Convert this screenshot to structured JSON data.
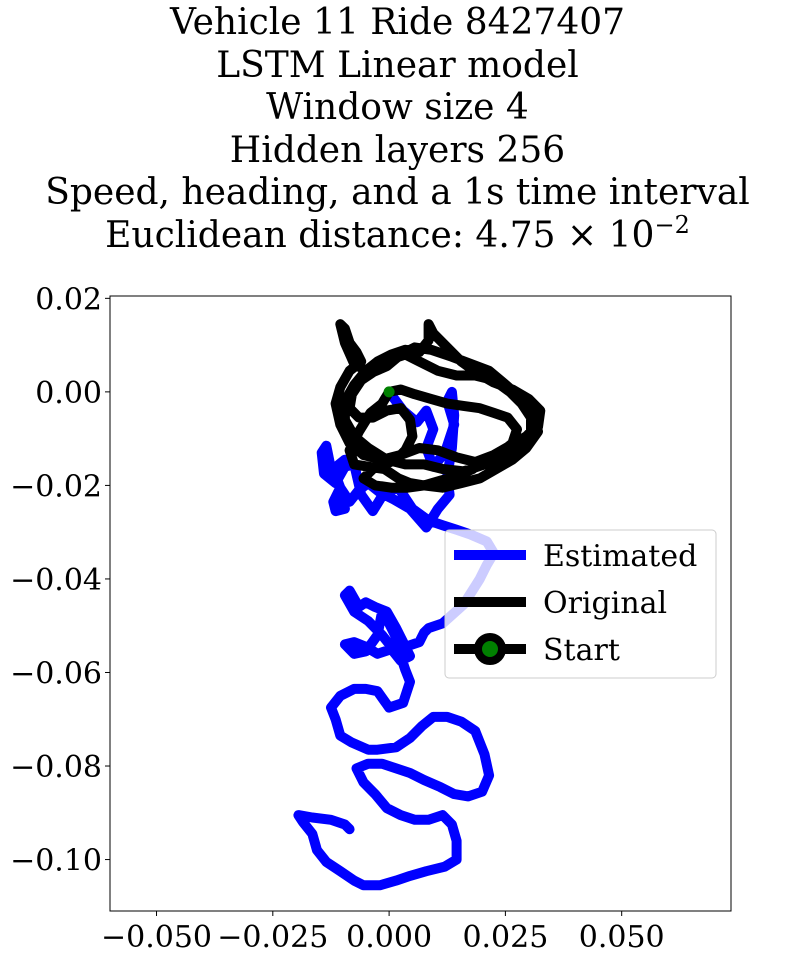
{
  "chart_data": {
    "type": "line",
    "title_lines": [
      "Vehicle 11 Ride 8427407",
      "LSTM Linear model",
      "Window size 4",
      "Hidden layers 256",
      "Speed, heading, and a 1s time interval"
    ],
    "title_distance": {
      "prefix": "Euclidean distance: ",
      "mantissa": "4.75",
      "times": "×",
      "base": "10",
      "exponent": "−2"
    },
    "xlim": [
      -0.06,
      0.0735
    ],
    "ylim": [
      -0.111,
      0.0205
    ],
    "x_ticks": [
      -0.05,
      -0.025,
      0.0,
      0.025,
      0.05
    ],
    "x_tick_labels": [
      "−0.050",
      "−0.025",
      "0.000",
      "0.025",
      "0.050"
    ],
    "y_ticks": [
      0.02,
      0.0,
      -0.02,
      -0.04,
      -0.06,
      -0.08,
      -0.1
    ],
    "y_tick_labels": [
      "0.02",
      "0.00",
      "−0.02",
      "−0.04",
      "−0.06",
      "−0.08",
      "−0.10"
    ],
    "grid": false,
    "legend": {
      "position": "center-right",
      "entries": [
        {
          "label": "Estimated",
          "color": "#0000ff"
        },
        {
          "label": "Original",
          "color": "#000000"
        },
        {
          "label": "Start",
          "color": "#000000",
          "marker_color": "#008000"
        }
      ]
    },
    "series": [
      {
        "name": "Estimated",
        "color": "#0000ff",
        "points": [
          [
            0.0,
            0.0
          ],
          [
            0.003,
            -0.004
          ],
          [
            0.006,
            -0.0065
          ],
          [
            0.008,
            -0.004
          ],
          [
            0.0095,
            -0.008
          ],
          [
            0.008,
            -0.012
          ],
          [
            0.0095,
            -0.016
          ],
          [
            0.012,
            -0.013
          ],
          [
            0.014,
            -0.007
          ],
          [
            0.0125,
            -0.002
          ],
          [
            0.0135,
            0.0
          ],
          [
            0.014,
            -0.005
          ],
          [
            0.0135,
            -0.012
          ],
          [
            0.0125,
            -0.018
          ],
          [
            0.013,
            -0.022
          ],
          [
            0.0105,
            -0.025
          ],
          [
            0.008,
            -0.029
          ],
          [
            0.0045,
            -0.025
          ],
          [
            0.001,
            -0.023
          ],
          [
            -0.002,
            -0.0215
          ],
          [
            -0.0045,
            -0.0195
          ],
          [
            -0.0065,
            -0.021
          ],
          [
            -0.0085,
            -0.0235
          ],
          [
            -0.0105,
            -0.0205
          ],
          [
            -0.012,
            -0.0235
          ],
          [
            -0.0115,
            -0.0255
          ],
          [
            -0.0095,
            -0.025
          ],
          [
            -0.0105,
            -0.0205
          ],
          [
            -0.012,
            -0.0165
          ],
          [
            -0.0095,
            -0.0145
          ],
          [
            -0.0105,
            -0.0175
          ],
          [
            -0.0125,
            -0.0165
          ],
          [
            -0.0135,
            -0.0115
          ],
          [
            -0.0145,
            -0.013
          ],
          [
            -0.014,
            -0.0175
          ],
          [
            -0.0115,
            -0.0195
          ],
          [
            -0.0095,
            -0.016
          ],
          [
            -0.0075,
            -0.0155
          ],
          [
            -0.006,
            -0.022
          ],
          [
            -0.0035,
            -0.0255
          ],
          [
            -0.001,
            -0.0215
          ],
          [
            0.002,
            -0.0205
          ],
          [
            0.005,
            -0.025
          ],
          [
            0.0085,
            -0.0275
          ],
          [
            0.0115,
            -0.0285
          ],
          [
            0.0145,
            -0.0295
          ],
          [
            0.0175,
            -0.0305
          ],
          [
            0.021,
            -0.032
          ],
          [
            0.0225,
            -0.0345
          ],
          [
            0.021,
            -0.037
          ],
          [
            0.0195,
            -0.04
          ],
          [
            0.016,
            -0.0455
          ],
          [
            0.0115,
            -0.0495
          ],
          [
            0.0085,
            -0.0505
          ],
          [
            0.0075,
            -0.0515
          ],
          [
            0.0065,
            -0.0535
          ],
          [
            0.0035,
            -0.0545
          ],
          [
            0.0015,
            -0.0525
          ],
          [
            0.0,
            -0.0495
          ],
          [
            -0.0015,
            -0.047
          ],
          [
            -0.0025,
            -0.052
          ],
          [
            -0.005,
            -0.0555
          ],
          [
            -0.0075,
            -0.056
          ],
          [
            -0.0095,
            -0.054
          ],
          [
            -0.0075,
            -0.0535
          ],
          [
            -0.005,
            -0.0545
          ],
          [
            -0.0025,
            -0.056
          ],
          [
            0.0005,
            -0.055
          ],
          [
            0.0025,
            -0.0575
          ],
          [
            0.0045,
            -0.0565
          ],
          [
            0.003,
            -0.0535
          ],
          [
            0.0015,
            -0.0505
          ],
          [
            -0.0005,
            -0.047
          ],
          [
            -0.003,
            -0.046
          ],
          [
            -0.005,
            -0.045
          ],
          [
            -0.0065,
            -0.046
          ],
          [
            -0.0085,
            -0.0425
          ],
          [
            -0.0095,
            -0.0435
          ],
          [
            -0.0075,
            -0.047
          ],
          [
            -0.0045,
            -0.049
          ],
          [
            -0.0015,
            -0.052
          ],
          [
            0.0005,
            -0.0545
          ],
          [
            0.0025,
            -0.0565
          ],
          [
            0.0035,
            -0.0595
          ],
          [
            0.0045,
            -0.062
          ],
          [
            0.003,
            -0.0665
          ],
          [
            0.0,
            -0.0675
          ],
          [
            -0.0025,
            -0.064
          ],
          [
            -0.005,
            -0.0635
          ],
          [
            -0.0075,
            -0.0635
          ],
          [
            -0.0105,
            -0.065
          ],
          [
            -0.0125,
            -0.0675
          ],
          [
            -0.0115,
            -0.07
          ],
          [
            -0.0105,
            -0.0735
          ],
          [
            -0.008,
            -0.075
          ],
          [
            -0.0045,
            -0.0765
          ],
          [
            -0.0025,
            -0.0765
          ],
          [
            0.0015,
            -0.076
          ],
          [
            0.0045,
            -0.074
          ],
          [
            0.007,
            -0.0715
          ],
          [
            0.0095,
            -0.0695
          ],
          [
            0.0125,
            -0.0695
          ],
          [
            0.0155,
            -0.0705
          ],
          [
            0.0185,
            -0.0725
          ],
          [
            0.0205,
            -0.0775
          ],
          [
            0.0215,
            -0.082
          ],
          [
            0.02,
            -0.0855
          ],
          [
            0.017,
            -0.0865
          ],
          [
            0.014,
            -0.086
          ],
          [
            0.011,
            -0.0845
          ],
          [
            0.0075,
            -0.083
          ],
          [
            0.0045,
            -0.0815
          ],
          [
            0.0015,
            -0.0805
          ],
          [
            -0.0015,
            -0.0795
          ],
          [
            -0.0045,
            -0.0795
          ],
          [
            -0.007,
            -0.0805
          ],
          [
            -0.0055,
            -0.0835
          ],
          [
            -0.003,
            -0.086
          ],
          [
            -0.0005,
            -0.089
          ],
          [
            0.0025,
            -0.0905
          ],
          [
            0.0055,
            -0.0915
          ],
          [
            0.0085,
            -0.0915
          ],
          [
            0.0115,
            -0.0905
          ],
          [
            0.0135,
            -0.0925
          ],
          [
            0.0145,
            -0.096
          ],
          [
            0.0145,
            -0.1
          ],
          [
            0.012,
            -0.1015
          ],
          [
            0.008,
            -0.1025
          ],
          [
            0.0045,
            -0.1035
          ],
          [
            0.0015,
            -0.1045
          ],
          [
            -0.002,
            -0.1055
          ],
          [
            -0.0055,
            -0.1055
          ],
          [
            -0.0075,
            -0.1045
          ],
          [
            -0.0105,
            -0.1025
          ],
          [
            -0.0135,
            -0.1005
          ],
          [
            -0.0155,
            -0.098
          ],
          [
            -0.0165,
            -0.0945
          ],
          [
            -0.0185,
            -0.092
          ],
          [
            -0.0195,
            -0.0905
          ],
          [
            -0.0165,
            -0.091
          ],
          [
            -0.0125,
            -0.0915
          ],
          [
            -0.0095,
            -0.0925
          ],
          [
            -0.0085,
            -0.0935
          ]
        ]
      },
      {
        "name": "Original",
        "color": "#000000",
        "points": [
          [
            0.0,
            0.0
          ],
          [
            -0.0015,
            -0.0025
          ],
          [
            -0.004,
            -0.0045
          ],
          [
            -0.0065,
            -0.0085
          ],
          [
            -0.0085,
            -0.0125
          ],
          [
            -0.0075,
            -0.0155
          ],
          [
            -0.0045,
            -0.016
          ],
          [
            -0.001,
            -0.0165
          ],
          [
            0.002,
            -0.0185
          ],
          [
            0.0045,
            -0.0195
          ],
          [
            0.0075,
            -0.02
          ],
          [
            0.0115,
            -0.0205
          ],
          [
            0.0155,
            -0.0195
          ],
          [
            0.0195,
            -0.0185
          ],
          [
            0.023,
            -0.0165
          ],
          [
            0.0265,
            -0.0145
          ],
          [
            0.0295,
            -0.012
          ],
          [
            0.032,
            -0.0085
          ],
          [
            0.031,
            -0.0045
          ],
          [
            0.028,
            -0.001
          ],
          [
            0.0245,
            0.002
          ],
          [
            0.0215,
            0.0045
          ],
          [
            0.0175,
            0.006
          ],
          [
            0.0135,
            0.0075
          ],
          [
            0.009,
            0.009
          ],
          [
            0.0055,
            0.0095
          ],
          [
            0.0025,
            0.008
          ],
          [
            -0.0005,
            0.0055
          ],
          [
            -0.004,
            0.004
          ],
          [
            -0.0075,
            0.006
          ],
          [
            -0.0095,
            0.0105
          ],
          [
            -0.0105,
            0.0145
          ],
          [
            -0.0095,
            0.0135
          ],
          [
            -0.0085,
            0.0105
          ],
          [
            -0.007,
            0.0085
          ],
          [
            -0.006,
            0.0065
          ],
          [
            -0.0085,
            0.0045
          ],
          [
            -0.0105,
            0.001
          ],
          [
            -0.0115,
            -0.0025
          ],
          [
            -0.0105,
            -0.007
          ],
          [
            -0.0085,
            -0.011
          ],
          [
            -0.0055,
            -0.0135
          ],
          [
            -0.0015,
            -0.0145
          ],
          [
            0.0025,
            -0.0135
          ],
          [
            0.0065,
            -0.012
          ],
          [
            0.0105,
            -0.0125
          ],
          [
            0.0145,
            -0.014
          ],
          [
            0.0185,
            -0.015
          ],
          [
            0.0225,
            -0.0135
          ],
          [
            0.026,
            -0.0115
          ],
          [
            0.0295,
            -0.0095
          ],
          [
            0.032,
            -0.0075
          ],
          [
            0.0325,
            -0.004
          ],
          [
            0.03,
            -0.0015
          ],
          [
            0.0265,
            0.0005
          ],
          [
            0.0225,
            0.002
          ],
          [
            0.019,
            0.004
          ],
          [
            0.0155,
            0.0065
          ],
          [
            0.0125,
            0.0095
          ],
          [
            0.0095,
            0.0125
          ],
          [
            0.0085,
            0.0145
          ],
          [
            0.0085,
            0.011
          ],
          [
            0.0065,
            0.0085
          ],
          [
            0.0035,
            0.009
          ],
          [
            0.0005,
            0.008
          ],
          [
            -0.0025,
            0.0065
          ],
          [
            -0.005,
            0.0045
          ],
          [
            -0.0075,
            0.0015
          ],
          [
            -0.0095,
            -0.002
          ],
          [
            -0.0095,
            -0.006
          ],
          [
            -0.0075,
            -0.0095
          ],
          [
            -0.0045,
            -0.012
          ],
          [
            -0.0005,
            -0.0145
          ],
          [
            0.0035,
            -0.0155
          ],
          [
            0.0075,
            -0.0155
          ],
          [
            0.0115,
            -0.0165
          ],
          [
            0.016,
            -0.017
          ],
          [
            0.0205,
            -0.0155
          ],
          [
            0.024,
            -0.014
          ],
          [
            0.0275,
            -0.0115
          ],
          [
            0.0305,
            -0.0085
          ],
          [
            0.0305,
            -0.0055
          ],
          [
            0.0285,
            -0.0025
          ],
          [
            0.026,
            0.0
          ],
          [
            0.0225,
            0.0025
          ],
          [
            0.0185,
            0.0035
          ],
          [
            0.0145,
            0.0035
          ],
          [
            0.0105,
            0.0045
          ],
          [
            0.0065,
            0.0065
          ],
          [
            0.0035,
            0.008
          ],
          [
            0.0005,
            0.007
          ],
          [
            -0.003,
            0.0045
          ],
          [
            -0.006,
            0.0025
          ],
          [
            -0.008,
            -0.0005
          ],
          [
            -0.0085,
            -0.0035
          ],
          [
            -0.0065,
            -0.0055
          ],
          [
            -0.0035,
            -0.0055
          ],
          [
            -0.0005,
            -0.004
          ],
          [
            0.0025,
            -0.0035
          ],
          [
            0.0045,
            -0.006
          ],
          [
            0.005,
            -0.0095
          ],
          [
            0.0035,
            -0.0125
          ],
          [
            0.0015,
            -0.0145
          ],
          [
            -0.001,
            -0.0155
          ],
          [
            -0.0035,
            -0.0165
          ],
          [
            -0.0055,
            -0.0185
          ],
          [
            -0.003,
            -0.02
          ],
          [
            0.0005,
            -0.0205
          ],
          [
            0.004,
            -0.0205
          ],
          [
            0.0075,
            -0.02
          ],
          [
            0.011,
            -0.019
          ],
          [
            0.0145,
            -0.018
          ],
          [
            0.018,
            -0.0165
          ],
          [
            0.021,
            -0.0145
          ],
          [
            0.024,
            -0.013
          ],
          [
            0.0265,
            -0.011
          ],
          [
            0.0275,
            -0.008
          ],
          [
            0.0255,
            -0.0055
          ],
          [
            0.0225,
            -0.0045
          ],
          [
            0.0195,
            -0.0035
          ],
          [
            0.016,
            -0.003
          ],
          [
            0.0125,
            -0.0025
          ],
          [
            0.009,
            -0.0015
          ],
          [
            0.0055,
            -0.0005
          ],
          [
            0.0025,
            0.0005
          ],
          [
            0.0,
            0.0
          ]
        ]
      }
    ],
    "start_point": {
      "x": 0.0,
      "y": 0.0,
      "color": "#008000"
    }
  }
}
